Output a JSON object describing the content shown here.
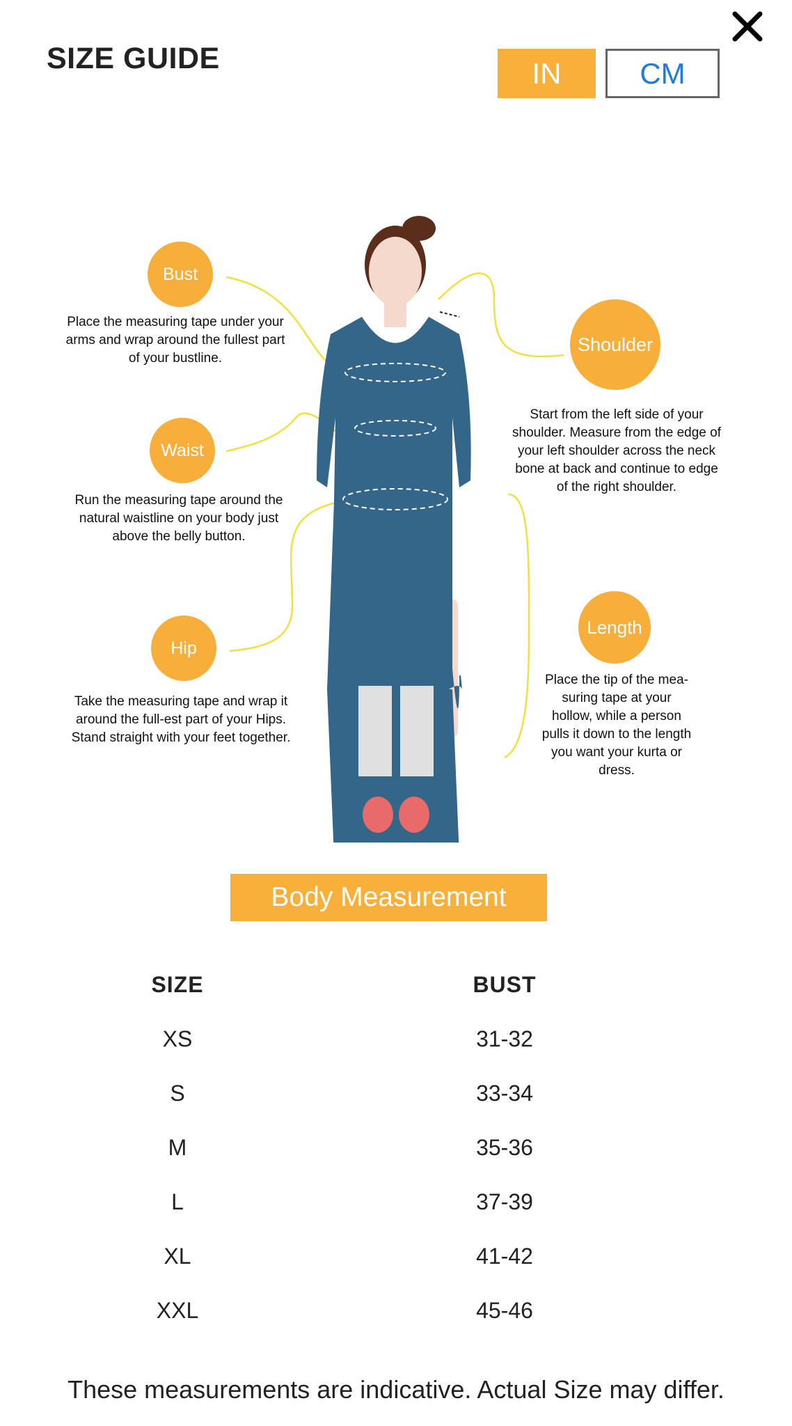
{
  "header": {
    "title": "SIZE GUIDE",
    "close_icon": "close-icon",
    "units": [
      {
        "label": "IN",
        "selected": true
      },
      {
        "label": "CM",
        "selected": false
      }
    ]
  },
  "colors": {
    "accent": "#f9b03b",
    "cm_text": "#1e7be0",
    "dress": "#336688"
  },
  "guide": {
    "bust": {
      "label": "Bust",
      "text": "Place the measuring tape under your arms and wrap around the fullest part of your bustline."
    },
    "waist": {
      "label": "Waist",
      "text": "Run the measuring tape around the natural waistline on your body just above the belly button."
    },
    "hip": {
      "label": "Hip",
      "text": "Take the measuring tape and wrap it around the full-est part of your Hips. Stand straight with your feet together."
    },
    "shoulder": {
      "label": "Shoulder",
      "text": "Start from the left side of your shoulder. Measure from the edge of your left shoulder across the neck bone at back and continue to edge of the right shoulder."
    },
    "length": {
      "label": "Length",
      "text": "Place the tip of the mea-suring tape at your hollow, while a person pulls it down to the length you want your kurta or dress."
    }
  },
  "table": {
    "title": "Body Measurement",
    "headers": [
      "SIZE",
      "BUST"
    ],
    "rows": [
      [
        "XS",
        "31-32"
      ],
      [
        "S",
        "33-34"
      ],
      [
        "M",
        "35-36"
      ],
      [
        "L",
        "37-39"
      ],
      [
        "XL",
        "41-42"
      ],
      [
        "XXL",
        "45-46"
      ]
    ]
  },
  "footer": "These measurements are indicative. Actual Size may differ."
}
